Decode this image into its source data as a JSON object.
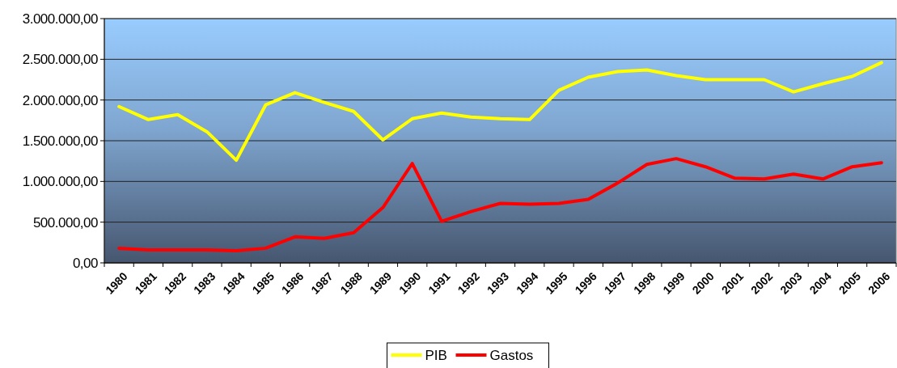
{
  "chart_data": {
    "type": "line",
    "categories": [
      "1980",
      "1981",
      "1982",
      "1983",
      "1984",
      "1985",
      "1986",
      "1987",
      "1988",
      "1989",
      "1990",
      "1991",
      "1992",
      "1993",
      "1994",
      "1995",
      "1996",
      "1997",
      "1998",
      "1999",
      "2000",
      "2001",
      "2002",
      "2003",
      "2004",
      "2005",
      "2006"
    ],
    "series": [
      {
        "name": "PIB",
        "color": "#ffff00",
        "values": [
          1920000,
          1760000,
          1820000,
          1610000,
          1260000,
          1940000,
          2090000,
          1970000,
          1860000,
          1510000,
          1770000,
          1840000,
          1790000,
          1770000,
          1760000,
          2120000,
          2280000,
          2350000,
          2370000,
          2300000,
          2250000,
          2250000,
          2250000,
          2100000,
          2200000,
          2290000,
          2460000
        ]
      },
      {
        "name": "Gastos",
        "color": "#ff0000",
        "values": [
          180000,
          160000,
          160000,
          160000,
          150000,
          180000,
          320000,
          300000,
          370000,
          680000,
          1220000,
          510000,
          630000,
          730000,
          720000,
          730000,
          780000,
          980000,
          1210000,
          1280000,
          1180000,
          1040000,
          1030000,
          1090000,
          1030000,
          1180000,
          1230000
        ]
      }
    ],
    "ylim": [
      0,
      3000000
    ],
    "yticks": [
      {
        "value": 0,
        "label": "0,00"
      },
      {
        "value": 500000,
        "label": "500.000,00"
      },
      {
        "value": 1000000,
        "label": "1.000.000,00"
      },
      {
        "value": 1500000,
        "label": "1.500.000,00"
      },
      {
        "value": 2000000,
        "label": "2.000.000,00"
      },
      {
        "value": 2500000,
        "label": "2.500.000,00"
      },
      {
        "value": 3000000,
        "label": "3.000.000,00"
      }
    ],
    "grid": "y",
    "legend": "bottom",
    "marker": "none",
    "line_style": "solid"
  }
}
